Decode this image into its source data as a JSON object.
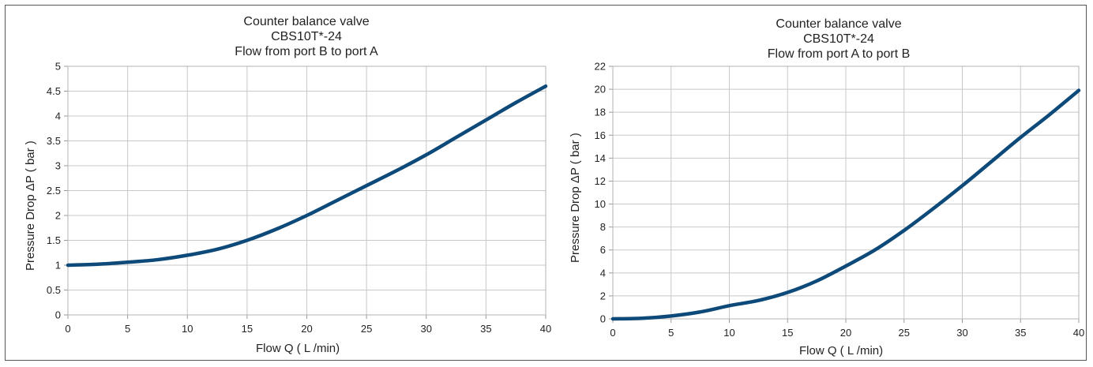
{
  "chart_data": [
    {
      "type": "line",
      "title": [
        "Counter balance valve",
        "CBS10T*-24",
        "Flow from port B  to port A"
      ],
      "xlabel": "Flow Q ( L /min)",
      "ylabel": "Pressure Drop ΔP ( bar )",
      "xlim": [
        0,
        40
      ],
      "ylim": [
        0,
        5
      ],
      "xticks": [
        "0",
        "5",
        "10",
        "15",
        "20",
        "25",
        "30",
        "35",
        "40"
      ],
      "yticks": [
        "0",
        "0.5",
        "1",
        "1.5",
        "2",
        "2.5",
        "3",
        "3.5",
        "4",
        "4.5",
        "5"
      ],
      "grid": true,
      "series": [
        {
          "color": "#0d4a7a",
          "x": [
            0,
            2.5,
            5,
            7.5,
            10,
            12.5,
            15,
            17.5,
            20,
            22.5,
            25,
            27.5,
            30,
            32.5,
            35,
            37.5,
            40
          ],
          "y": [
            1.0,
            1.02,
            1.06,
            1.11,
            1.2,
            1.32,
            1.5,
            1.73,
            2.0,
            2.3,
            2.6,
            2.9,
            3.22,
            3.57,
            3.92,
            4.27,
            4.6
          ]
        }
      ]
    },
    {
      "type": "line",
      "title": [
        "Counter balance valve",
        "CBS10T*-24",
        "Flow from port A to port B"
      ],
      "xlabel": "Flow Q ( L /min)",
      "ylabel": "Pressure Drop ΔP ( bar )",
      "xlim": [
        0,
        40
      ],
      "ylim": [
        0,
        22
      ],
      "xticks": [
        "0",
        "5",
        "10",
        "15",
        "20",
        "25",
        "30",
        "35",
        "40"
      ],
      "yticks": [
        "0",
        "2",
        "4",
        "6",
        "8",
        "10",
        "12",
        "14",
        "16",
        "18",
        "20",
        "22"
      ],
      "grid": true,
      "series": [
        {
          "color": "#0d4a7a",
          "x": [
            0,
            2.5,
            5,
            7.5,
            10,
            12.5,
            15,
            17.5,
            20,
            22.5,
            25,
            27.5,
            30,
            32.5,
            35,
            37.5,
            40
          ],
          "y": [
            0,
            0.05,
            0.25,
            0.6,
            1.15,
            1.6,
            2.3,
            3.3,
            4.6,
            6.0,
            7.7,
            9.6,
            11.6,
            13.7,
            15.8,
            17.8,
            19.9
          ]
        }
      ]
    }
  ]
}
